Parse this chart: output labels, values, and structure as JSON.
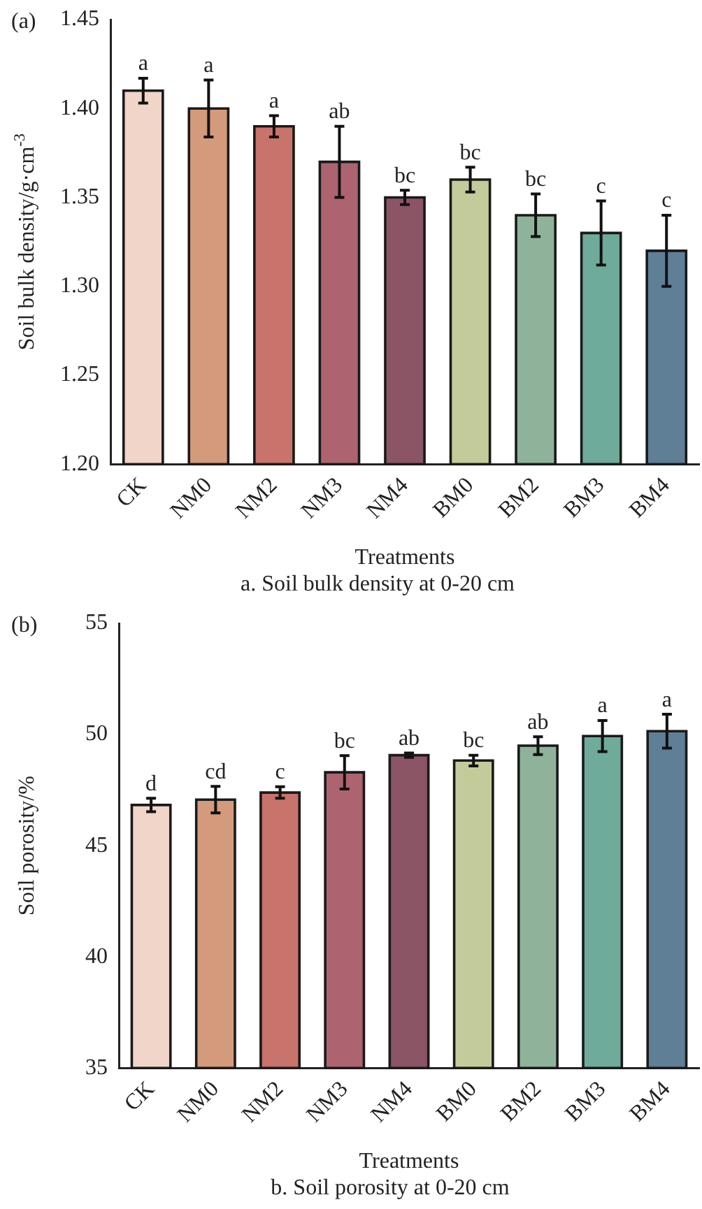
{
  "chart_data": [
    {
      "type": "bar",
      "title": "a. Soil bulk density at 0-20 cm",
      "xlabel": "Treatments",
      "ylabel": "Soil bulk density/g·cm$^{-3}$",
      "annotations": [
        "(a)"
      ],
      "categories": [
        "CK",
        "NM0",
        "NM2",
        "NM3",
        "NM4",
        "BM0",
        "BM2",
        "BM3",
        "BM4"
      ],
      "values": [
        1.41,
        1.4,
        1.39,
        1.37,
        1.35,
        1.36,
        1.34,
        1.33,
        1.32
      ],
      "errors": [
        0.007,
        0.016,
        0.006,
        0.02,
        0.004,
        0.007,
        0.012,
        0.018,
        0.02
      ],
      "value_labels": [
        "a",
        "a",
        "a",
        "ab",
        "bc",
        "bc",
        "bc",
        "c",
        "c"
      ],
      "colors": [
        "#f0d5c8",
        "#d49a7c",
        "#c8736b",
        "#ad6470",
        "#8b5566",
        "#c4cb9a",
        "#8fb39a",
        "#6fab9a",
        "#5f7f96"
      ],
      "ylim": [
        1.2,
        1.45
      ],
      "yticks": [
        {
          "value": 1.2,
          "label": "1.20"
        },
        {
          "value": 1.25,
          "label": "1.25"
        },
        {
          "value": 1.3,
          "label": "1.30"
        },
        {
          "value": 1.35,
          "label": "1.35"
        },
        {
          "value": 1.4,
          "label": "1.40"
        },
        {
          "value": 1.45,
          "label": "1.45"
        }
      ],
      "grid": false,
      "legend": false
    },
    {
      "type": "bar",
      "title": "b. Soil porosity at 0-20 cm",
      "xlabel": "Treatments",
      "ylabel": "Soil porosity/%",
      "annotations": [
        "(b)"
      ],
      "categories": [
        "CK",
        "NM0",
        "NM2",
        "NM3",
        "NM4",
        "BM0",
        "BM2",
        "BM3",
        "BM4"
      ],
      "values": [
        46.83,
        47.07,
        47.39,
        48.3,
        49.07,
        48.83,
        49.5,
        49.93,
        50.15
      ],
      "errors": [
        0.3,
        0.6,
        0.26,
        0.75,
        0.1,
        0.24,
        0.4,
        0.7,
        0.76
      ],
      "value_labels": [
        "d",
        "cd",
        "c",
        "bc",
        "ab",
        "bc",
        "ab",
        "a",
        "a"
      ],
      "colors": [
        "#f0d5c8",
        "#d49a7c",
        "#c8736b",
        "#ad6470",
        "#8b5566",
        "#c4cb9a",
        "#8fb39a",
        "#6fab9a",
        "#5f7f96"
      ],
      "ylim": [
        35,
        55
      ],
      "yticks": [
        35,
        40,
        45,
        50,
        55
      ],
      "grid": false,
      "legend": false
    }
  ]
}
